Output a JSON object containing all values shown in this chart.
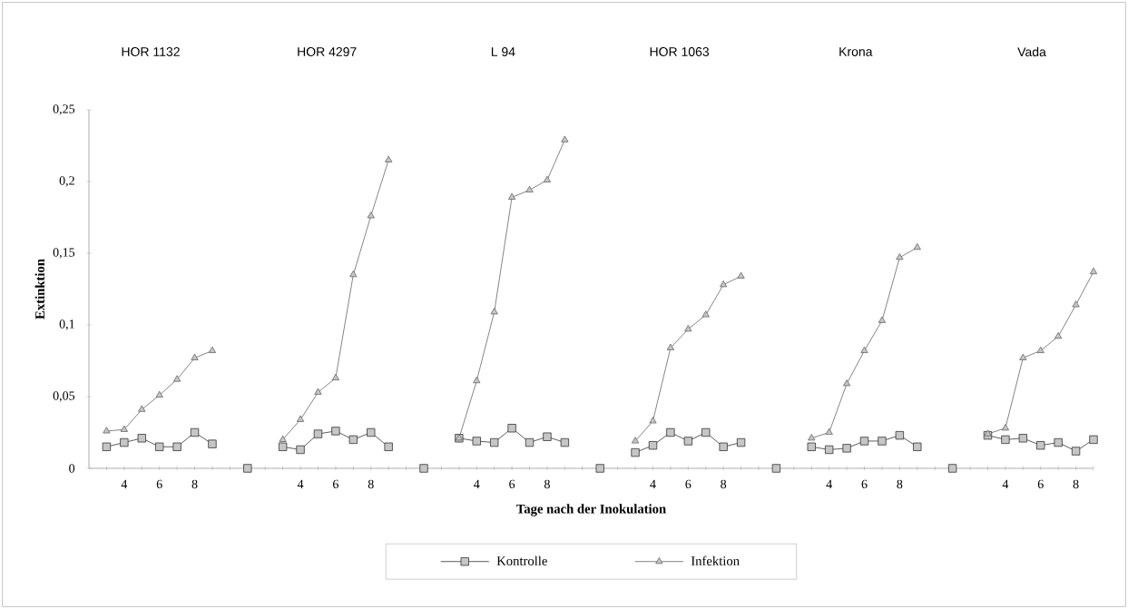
{
  "chart_data": {
    "type": "line",
    "xlabel": "Tage nach der Inokulation",
    "ylabel": "Extinktion",
    "annotations": [
      "HOR 1132",
      "HOR 4297",
      "L 94",
      "HOR 1063",
      "Krona",
      "Vada"
    ],
    "categories": [
      null,
      "4",
      null,
      "6",
      null,
      "8",
      null,
      null,
      null,
      null,
      null,
      "4",
      null,
      "6",
      null,
      "8",
      null,
      null,
      null,
      null,
      null,
      "4",
      null,
      "6",
      null,
      "8",
      null,
      null,
      null,
      null,
      null,
      "4",
      null,
      "6",
      null,
      "8",
      null,
      null,
      null,
      null,
      null,
      "4",
      null,
      "6",
      null,
      "8",
      null,
      null,
      null,
      null,
      null,
      "4",
      null,
      "6",
      null,
      "8",
      null
    ],
    "series": [
      {
        "name": "Kontrolle",
        "color": "#333333",
        "marker": "square",
        "values": [
          0.015,
          0.018,
          0.021,
          0.015,
          0.015,
          0.025,
          0.017,
          null,
          0,
          null,
          0.015,
          0.013,
          0.024,
          0.026,
          0.02,
          0.025,
          0.015,
          null,
          0,
          null,
          0.021,
          0.019,
          0.018,
          0.028,
          0.018,
          0.022,
          0.018,
          null,
          0,
          null,
          0.011,
          0.016,
          0.025,
          0.019,
          0.025,
          0.015,
          0.018,
          null,
          0,
          null,
          0.015,
          0.013,
          0.014,
          0.019,
          0.019,
          0.023,
          0.015,
          null,
          0,
          null,
          0.023,
          0.02,
          0.021,
          0.016,
          0.018,
          0.012,
          0.02
        ]
      },
      {
        "name": "Infektion",
        "color": "#666666",
        "marker": "triangle",
        "values": [
          0.026,
          0.027,
          0.041,
          0.051,
          0.062,
          0.077,
          0.082,
          null,
          null,
          null,
          0.02,
          0.034,
          0.053,
          0.063,
          0.135,
          0.176,
          0.215,
          null,
          null,
          null,
          0.021,
          0.061,
          0.109,
          0.189,
          0.194,
          0.201,
          0.229,
          null,
          null,
          null,
          0.019,
          0.033,
          0.084,
          0.097,
          0.107,
          0.128,
          0.134,
          null,
          null,
          null,
          0.021,
          0.025,
          0.059,
          0.082,
          0.103,
          0.147,
          0.154,
          null,
          null,
          null,
          0.024,
          0.028,
          0.077,
          0.082,
          0.092,
          0.114,
          0.137
        ]
      }
    ],
    "ylim": [
      0,
      0.25
    ],
    "yticks": [
      0,
      {
        "value": 0.05,
        "label": "0,05"
      },
      {
        "value": 0.1,
        "label": "0,1"
      },
      {
        "value": 0.15,
        "label": "0,15"
      },
      {
        "value": 0.2,
        "label": "0,2"
      },
      {
        "value": 0.25,
        "label": "0,25"
      }
    ],
    "grid": false,
    "legend": "bottom"
  }
}
